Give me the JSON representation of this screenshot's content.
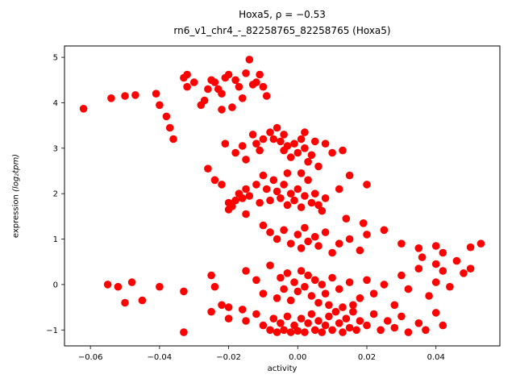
{
  "figure": {
    "title_line1": "Hoxa5, ρ = −0.53",
    "title_line2": "rn6_v1_chr4_-_82258765_82258765 (Hoxa5)",
    "xlabel": "activity",
    "ylabel_main": "expression ",
    "ylabel_math": "(log₂tpm)"
  },
  "chart_data": {
    "type": "scatter",
    "title": "Hoxa5, ρ = −0.53",
    "subtitle": "rn6_v1_chr4_-_82258765_82258765 (Hoxa5)",
    "xlabel": "activity",
    "ylabel": "expression (log₂tpm)",
    "correlation_rho": -0.53,
    "marker_color": "#ff0000",
    "marker_radius_px": 4.8,
    "grid": false,
    "legend": "none",
    "xlim": [
      -0.0675,
      0.0585
    ],
    "ylim": [
      -1.35,
      5.25
    ],
    "x_ticks": {
      "values": [
        -0.06,
        -0.04,
        -0.02,
        0.0,
        0.02,
        0.04
      ],
      "labels": [
        "−0.06",
        "−0.04",
        "−0.02",
        "0.00",
        "0.02",
        "0.04"
      ]
    },
    "y_ticks": {
      "values": [
        -1,
        0,
        1,
        2,
        3,
        4,
        5
      ],
      "labels": [
        "−1",
        "0",
        "1",
        "2",
        "3",
        "4",
        "5"
      ]
    },
    "points": [
      [
        -0.062,
        3.87
      ],
      [
        -0.054,
        4.1
      ],
      [
        -0.05,
        4.15
      ],
      [
        -0.047,
        4.17
      ],
      [
        -0.041,
        4.2
      ],
      [
        -0.04,
        3.95
      ],
      [
        -0.038,
        3.7
      ],
      [
        -0.037,
        3.45
      ],
      [
        -0.036,
        3.2
      ],
      [
        -0.033,
        4.55
      ],
      [
        -0.032,
        4.62
      ],
      [
        -0.032,
        4.35
      ],
      [
        -0.03,
        4.45
      ],
      [
        -0.028,
        3.95
      ],
      [
        -0.027,
        4.05
      ],
      [
        -0.026,
        4.3
      ],
      [
        -0.025,
        4.5
      ],
      [
        -0.024,
        4.45
      ],
      [
        -0.023,
        4.3
      ],
      [
        -0.022,
        4.2
      ],
      [
        -0.021,
        4.55
      ],
      [
        -0.02,
        4.62
      ],
      [
        -0.018,
        4.5
      ],
      [
        -0.016,
        4.1
      ],
      [
        -0.015,
        4.65
      ],
      [
        -0.014,
        4.95
      ],
      [
        -0.013,
        4.4
      ],
      [
        -0.012,
        4.45
      ],
      [
        -0.011,
        4.62
      ],
      [
        -0.01,
        4.35
      ],
      [
        -0.019,
        3.9
      ],
      [
        -0.022,
        3.85
      ],
      [
        -0.017,
        4.35
      ],
      [
        -0.009,
        4.15
      ],
      [
        -0.021,
        3.1
      ],
      [
        -0.018,
        2.9
      ],
      [
        -0.016,
        3.05
      ],
      [
        -0.015,
        2.75
      ],
      [
        -0.013,
        3.3
      ],
      [
        -0.012,
        3.1
      ],
      [
        -0.011,
        2.95
      ],
      [
        -0.01,
        3.2
      ],
      [
        -0.008,
        3.35
      ],
      [
        -0.007,
        3.2
      ],
      [
        -0.006,
        3.45
      ],
      [
        -0.005,
        3.15
      ],
      [
        -0.004,
        2.95
      ],
      [
        -0.003,
        3.05
      ],
      [
        -0.002,
        2.8
      ],
      [
        -0.001,
        3.1
      ],
      [
        0.0,
        2.9
      ],
      [
        0.001,
        3.2
      ],
      [
        0.002,
        3.0
      ],
      [
        0.003,
        2.7
      ],
      [
        0.004,
        2.85
      ],
      [
        0.006,
        2.6
      ],
      [
        0.008,
        3.1
      ],
      [
        0.01,
        2.9
      ],
      [
        0.013,
        2.95
      ],
      [
        0.002,
        3.35
      ],
      [
        -0.004,
        3.3
      ],
      [
        0.005,
        3.15
      ],
      [
        -0.026,
        2.55
      ],
      [
        -0.024,
        2.3
      ],
      [
        -0.022,
        2.2
      ],
      [
        -0.02,
        1.8
      ],
      [
        -0.019,
        1.72
      ],
      [
        -0.018,
        1.85
      ],
      [
        -0.017,
        2.0
      ],
      [
        -0.016,
        1.9
      ],
      [
        -0.015,
        2.1
      ],
      [
        -0.014,
        1.95
      ],
      [
        -0.012,
        2.2
      ],
      [
        -0.011,
        1.8
      ],
      [
        -0.01,
        2.4
      ],
      [
        -0.009,
        2.1
      ],
      [
        -0.008,
        1.85
      ],
      [
        -0.007,
        2.3
      ],
      [
        -0.006,
        2.05
      ],
      [
        -0.005,
        1.9
      ],
      [
        -0.004,
        2.2
      ],
      [
        -0.003,
        1.75
      ],
      [
        -0.002,
        2.0
      ],
      [
        -0.001,
        1.85
      ],
      [
        0.0,
        2.1
      ],
      [
        0.001,
        1.7
      ],
      [
        0.002,
        1.95
      ],
      [
        0.003,
        2.3
      ],
      [
        0.004,
        1.8
      ],
      [
        0.005,
        2.0
      ],
      [
        0.006,
        1.75
      ],
      [
        0.007,
        1.62
      ],
      [
        0.008,
        1.9
      ],
      [
        0.012,
        2.1
      ],
      [
        0.015,
        2.4
      ],
      [
        0.02,
        2.2
      ],
      [
        0.001,
        2.45
      ],
      [
        -0.003,
        2.45
      ],
      [
        -0.02,
        1.65
      ],
      [
        -0.015,
        1.55
      ],
      [
        -0.01,
        1.3
      ],
      [
        -0.008,
        1.15
      ],
      [
        -0.006,
        1.0
      ],
      [
        -0.004,
        1.2
      ],
      [
        -0.002,
        0.9
      ],
      [
        0.0,
        1.1
      ],
      [
        0.001,
        0.8
      ],
      [
        0.002,
        1.25
      ],
      [
        0.003,
        0.95
      ],
      [
        0.005,
        1.05
      ],
      [
        0.006,
        0.85
      ],
      [
        0.008,
        1.15
      ],
      [
        0.01,
        0.7
      ],
      [
        0.012,
        0.9
      ],
      [
        0.015,
        1.0
      ],
      [
        0.018,
        0.75
      ],
      [
        0.02,
        1.1
      ],
      [
        0.025,
        1.2
      ],
      [
        0.03,
        0.9
      ],
      [
        0.035,
        0.8
      ],
      [
        0.04,
        0.85
      ],
      [
        0.042,
        0.7
      ],
      [
        0.05,
        0.82
      ],
      [
        0.053,
        0.9
      ],
      [
        0.014,
        1.45
      ],
      [
        0.019,
        1.35
      ],
      [
        -0.055,
        0.0
      ],
      [
        -0.052,
        -0.05
      ],
      [
        -0.05,
        -0.4
      ],
      [
        -0.048,
        0.05
      ],
      [
        -0.045,
        -0.35
      ],
      [
        -0.04,
        -0.05
      ],
      [
        -0.033,
        -0.15
      ],
      [
        -0.025,
        0.2
      ],
      [
        -0.024,
        -0.05
      ],
      [
        -0.022,
        -0.45
      ],
      [
        -0.02,
        -0.5
      ],
      [
        -0.015,
        0.3
      ],
      [
        -0.012,
        0.1
      ],
      [
        -0.01,
        -0.2
      ],
      [
        -0.008,
        0.42
      ],
      [
        -0.006,
        -0.3
      ],
      [
        -0.005,
        0.15
      ],
      [
        -0.004,
        -0.1
      ],
      [
        -0.003,
        0.25
      ],
      [
        -0.002,
        -0.35
      ],
      [
        -0.001,
        0.05
      ],
      [
        0.0,
        -0.15
      ],
      [
        0.001,
        0.3
      ],
      [
        0.002,
        -0.05
      ],
      [
        0.003,
        0.2
      ],
      [
        0.004,
        -0.25
      ],
      [
        0.005,
        0.1
      ],
      [
        0.006,
        -0.4
      ],
      [
        0.007,
        0.0
      ],
      [
        0.008,
        -0.2
      ],
      [
        0.01,
        0.15
      ],
      [
        0.012,
        -0.1
      ],
      [
        0.015,
        0.05
      ],
      [
        0.018,
        -0.3
      ],
      [
        0.02,
        0.1
      ],
      [
        0.022,
        -0.2
      ],
      [
        0.025,
        0.0
      ],
      [
        0.028,
        -0.45
      ],
      [
        0.03,
        0.2
      ],
      [
        0.032,
        -0.1
      ],
      [
        0.035,
        0.35
      ],
      [
        0.038,
        -0.25
      ],
      [
        0.04,
        0.45
      ],
      [
        0.042,
        0.3
      ],
      [
        0.044,
        -0.05
      ],
      [
        0.046,
        0.52
      ],
      [
        0.048,
        0.25
      ],
      [
        0.05,
        0.35
      ],
      [
        0.036,
        0.6
      ],
      [
        0.04,
        0.05
      ],
      [
        -0.033,
        -1.05
      ],
      [
        -0.025,
        -0.6
      ],
      [
        -0.02,
        -0.75
      ],
      [
        -0.015,
        -0.8
      ],
      [
        -0.012,
        -0.65
      ],
      [
        -0.01,
        -0.9
      ],
      [
        -0.008,
        -1.0
      ],
      [
        -0.007,
        -0.75
      ],
      [
        -0.006,
        -1.05
      ],
      [
        -0.005,
        -0.85
      ],
      [
        -0.004,
        -1.0
      ],
      [
        -0.003,
        -0.7
      ],
      [
        -0.002,
        -1.05
      ],
      [
        -0.001,
        -0.9
      ],
      [
        0.0,
        -1.02
      ],
      [
        0.001,
        -0.75
      ],
      [
        0.002,
        -1.05
      ],
      [
        0.003,
        -0.85
      ],
      [
        0.004,
        -0.65
      ],
      [
        0.005,
        -1.0
      ],
      [
        0.006,
        -0.8
      ],
      [
        0.007,
        -1.05
      ],
      [
        0.008,
        -0.9
      ],
      [
        0.009,
        -0.7
      ],
      [
        0.01,
        -1.0
      ],
      [
        0.011,
        -0.6
      ],
      [
        0.012,
        -0.85
      ],
      [
        0.013,
        -1.05
      ],
      [
        0.014,
        -0.75
      ],
      [
        0.015,
        -0.95
      ],
      [
        0.016,
        -0.6
      ],
      [
        0.017,
        -1.0
      ],
      [
        0.018,
        -0.8
      ],
      [
        0.02,
        -0.9
      ],
      [
        0.022,
        -0.65
      ],
      [
        0.024,
        -1.0
      ],
      [
        0.026,
        -0.8
      ],
      [
        0.028,
        -0.95
      ],
      [
        0.03,
        -0.7
      ],
      [
        0.032,
        -1.05
      ],
      [
        0.035,
        -0.85
      ],
      [
        0.037,
        -1.0
      ],
      [
        0.04,
        -0.62
      ],
      [
        0.042,
        -0.9
      ],
      [
        -0.016,
        -0.55
      ],
      [
        0.009,
        -0.45
      ],
      [
        0.013,
        -0.5
      ],
      [
        0.016,
        -0.45
      ]
    ]
  }
}
